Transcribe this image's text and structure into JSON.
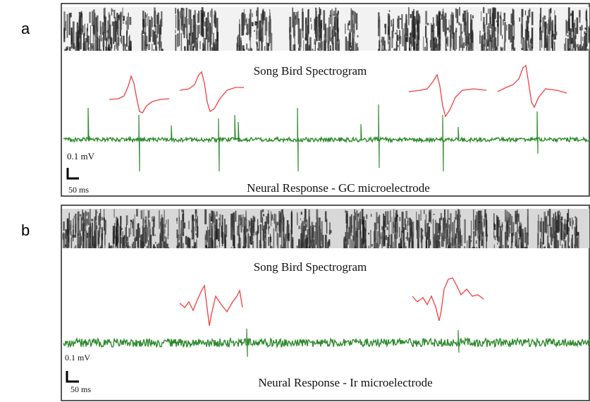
{
  "panels": [
    {
      "label": "a",
      "spectrogram_title": "Song Bird Spectrogram",
      "voltage_scale": "0.1 mV",
      "time_scale": "50 ms",
      "response_title": "Neural Response - GC microelectrode"
    },
    {
      "label": "b",
      "spectrogram_title": "Song Bird Spectrogram",
      "voltage_scale": "0.1 mV",
      "time_scale": "50 ms",
      "response_title": "Neural Response - Ir microelectrode"
    }
  ]
}
